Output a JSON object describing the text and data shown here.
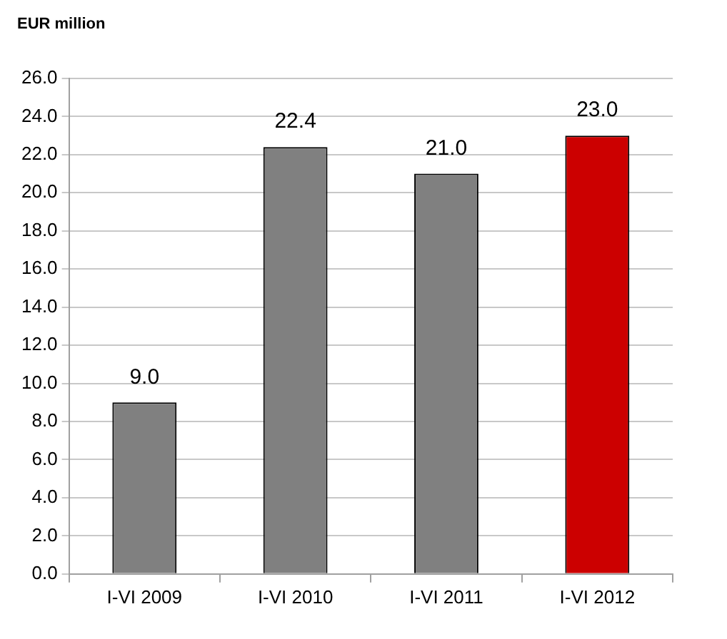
{
  "chart_data": {
    "type": "bar",
    "ylabel": "EUR million",
    "categories": [
      "I-VI 2009",
      "I-VI 2010",
      "I-VI 2011",
      "I-VI 2012"
    ],
    "values": [
      9.0,
      22.4,
      21.0,
      23.0
    ],
    "colors": [
      "#808080",
      "#808080",
      "#808080",
      "#cc0000"
    ],
    "ylim": [
      0,
      26
    ],
    "yticks": [
      {
        "value": 0,
        "label": "0.0"
      },
      {
        "value": 2,
        "label": "2.0"
      },
      {
        "value": 4,
        "label": "4.0"
      },
      {
        "value": 6,
        "label": "6.0"
      },
      {
        "value": 8,
        "label": "8.0"
      },
      {
        "value": 10,
        "label": "10.0"
      },
      {
        "value": 12,
        "label": "12.0"
      },
      {
        "value": 14,
        "label": "14.0"
      },
      {
        "value": 16,
        "label": "16.0"
      },
      {
        "value": 18,
        "label": "18.0"
      },
      {
        "value": 20,
        "label": "20.0"
      },
      {
        "value": 22,
        "label": "22.0"
      },
      {
        "value": 24,
        "label": "24.0"
      },
      {
        "value": 26,
        "label": "26.0"
      }
    ],
    "value_labels": [
      "9.0",
      "22.4",
      "21.0",
      "23.0"
    ],
    "grid": "y",
    "legend": false
  }
}
